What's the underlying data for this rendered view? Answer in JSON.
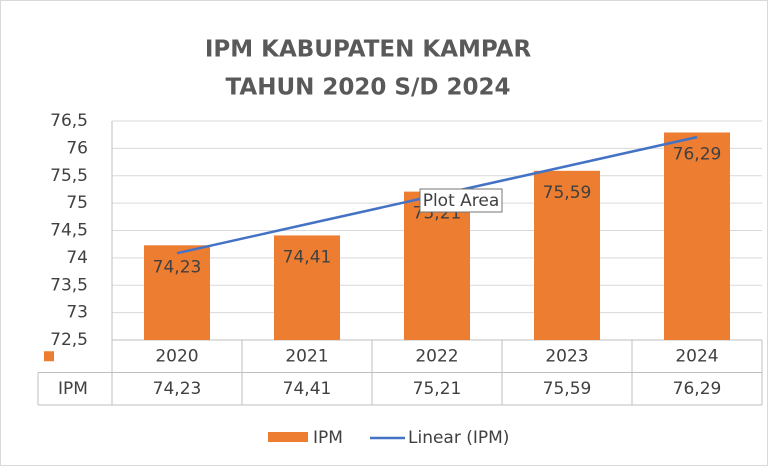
{
  "chart_data": {
    "type": "bar",
    "title": "IPM KABUPATEN KAMPAR",
    "subtitle": "TAHUN 2020 S/D 2024",
    "categories": [
      "2020",
      "2021",
      "2022",
      "2023",
      "2024"
    ],
    "series": [
      {
        "name": "IPM",
        "color": "#ed7d31",
        "values": [
          74.23,
          74.41,
          75.21,
          75.59,
          76.29
        ],
        "value_labels": [
          "74,23",
          "74,41",
          "75,21",
          "75,59",
          "76,29"
        ]
      }
    ],
    "trendline": {
      "name": "Linear (IPM)",
      "color": "#4472c4"
    },
    "ylim": [
      72.5,
      76.5
    ],
    "yticks": [
      {
        "value": 72.5,
        "label": "72,5"
      },
      73,
      {
        "value": 73.5,
        "label": "73,5"
      },
      74,
      {
        "value": 74.5,
        "label": "74,5"
      },
      75,
      {
        "value": 75.5,
        "label": "75,5"
      },
      76,
      {
        "value": 76.5,
        "label": "76,5"
      }
    ],
    "grid": true,
    "tooltip": "Plot Area"
  }
}
